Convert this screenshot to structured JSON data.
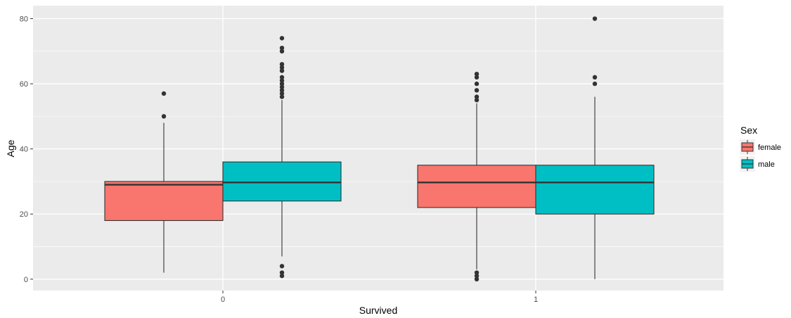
{
  "chart_data": {
    "type": "boxplot",
    "xlabel": "Survived",
    "ylabel": "Age",
    "categories": [
      "0",
      "1"
    ],
    "ylim": [
      -3.5,
      84
    ],
    "yticks": [
      0,
      20,
      40,
      60,
      80
    ],
    "grid": true,
    "legend": {
      "title": "Sex",
      "placement": "right",
      "entries": [
        "female",
        "male"
      ]
    },
    "colors": {
      "female": "#F8766D",
      "male": "#00BFC4",
      "panel": "#EBEBEB",
      "grid": "#FFFFFF",
      "outline": "#333333"
    },
    "series": [
      {
        "name": "female",
        "boxes": [
          {
            "category": "0",
            "whisker_low": 2,
            "q1": 18,
            "median": 29,
            "q3": 30,
            "whisker_high": 48,
            "outliers": [
              50,
              57
            ]
          },
          {
            "category": "1",
            "whisker_low": 3,
            "q1": 22,
            "median": 29.7,
            "q3": 35,
            "whisker_high": 54,
            "outliers": [
              0,
              1,
              2,
              55,
              56,
              58,
              60,
              62,
              63
            ]
          }
        ]
      },
      {
        "name": "male",
        "boxes": [
          {
            "category": "0",
            "whisker_low": 7,
            "q1": 24,
            "median": 29.7,
            "q3": 36,
            "whisker_high": 55,
            "outliers": [
              1,
              2,
              4,
              56,
              57,
              58,
              59,
              60,
              61,
              62,
              64,
              65,
              66,
              70,
              71,
              74
            ]
          },
          {
            "category": "1",
            "whisker_low": 0,
            "q1": 20,
            "median": 29.7,
            "q3": 35,
            "whisker_high": 56,
            "outliers": [
              60,
              62,
              80
            ]
          }
        ]
      }
    ]
  }
}
